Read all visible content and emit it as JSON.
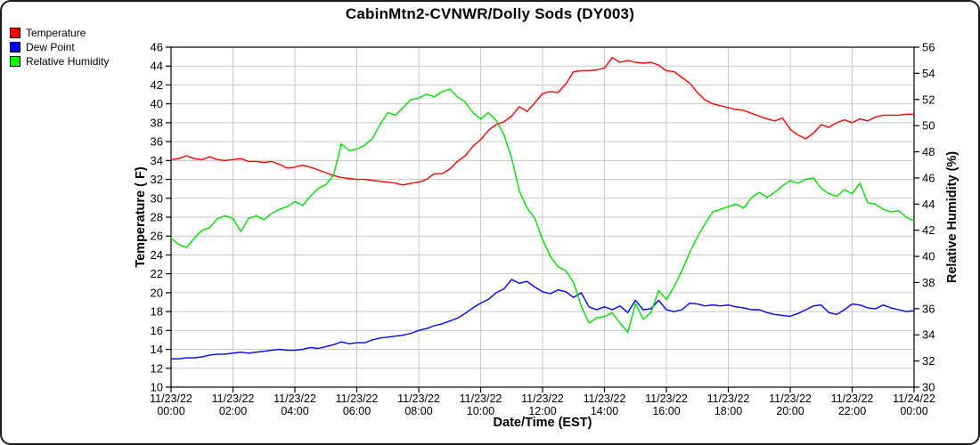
{
  "title": "CabinMtn2-CVNWR/Dolly Sods (DY003)",
  "legend": {
    "items": [
      {
        "label": "Temperature",
        "color": "#ff0000"
      },
      {
        "label": "Dew Point",
        "color": "#0000ff"
      },
      {
        "label": "Relative Humidity",
        "color": "#00ff00"
      }
    ]
  },
  "axes": {
    "left_title": "Temperature ( F)",
    "right_title": "Relative Humidity (%)",
    "x_title": "Date/Time (EST)"
  },
  "chart_data": {
    "type": "line",
    "title": "CabinMtn2-CVNWR/Dolly Sods (DY003)",
    "xlabel": "Date/Time (EST)",
    "ylabel_left": "Temperature ( F)",
    "ylabel_right": "Relative Humidity (%)",
    "grid": true,
    "legend_position": "top-left",
    "grid_color": "#c9c9c9",
    "ylim_left": [
      10,
      46
    ],
    "ytick_step_left": 2,
    "ylim_right": [
      30,
      56
    ],
    "ytick_step_right": 2,
    "xlim_hours": [
      0,
      24
    ],
    "xtick_step_hours": 2,
    "x_ticks": [
      {
        "date": "11/23/22",
        "time": "00:00"
      },
      {
        "date": "11/23/22",
        "time": "02:00"
      },
      {
        "date": "11/23/22",
        "time": "04:00"
      },
      {
        "date": "11/23/22",
        "time": "06:00"
      },
      {
        "date": "11/23/22",
        "time": "08:00"
      },
      {
        "date": "11/23/22",
        "time": "10:00"
      },
      {
        "date": "11/23/22",
        "time": "12:00"
      },
      {
        "date": "11/23/22",
        "time": "14:00"
      },
      {
        "date": "11/23/22",
        "time": "16:00"
      },
      {
        "date": "11/23/22",
        "time": "18:00"
      },
      {
        "date": "11/23/22",
        "time": "20:00"
      },
      {
        "date": "11/23/22",
        "time": "22:00"
      },
      {
        "date": "11/24/22",
        "time": "00:00"
      }
    ],
    "x_start_hour": 0,
    "x_step_hours": 0.25,
    "series": [
      {
        "name": "Temperature",
        "axis": "left",
        "unit": "F",
        "color": "#ff0000",
        "values": [
          34.1,
          34.2,
          34.5,
          34.2,
          34.1,
          34.4,
          34.1,
          34.0,
          34.1,
          34.2,
          33.9,
          33.9,
          33.8,
          33.9,
          33.6,
          33.2,
          33.3,
          33.5,
          33.3,
          33.0,
          32.7,
          32.4,
          32.2,
          32.1,
          32.0,
          32.0,
          31.9,
          31.8,
          31.7,
          31.6,
          31.4,
          31.6,
          31.7,
          32.0,
          32.6,
          32.6,
          33.1,
          33.9,
          34.5,
          35.5,
          36.2,
          37.2,
          37.8,
          38.1,
          38.7,
          39.7,
          39.2,
          40.1,
          41.1,
          41.3,
          41.2,
          42.1,
          43.4,
          43.5,
          43.5,
          43.6,
          43.8,
          44.9,
          44.4,
          44.6,
          44.4,
          44.3,
          44.4,
          44.1,
          43.5,
          43.4,
          42.8,
          42.2,
          41.2,
          40.4,
          40.0,
          39.8,
          39.6,
          39.4,
          39.3,
          39.0,
          38.7,
          38.4,
          38.2,
          38.5,
          37.3,
          36.7,
          36.3,
          36.9,
          37.8,
          37.5,
          38.0,
          38.3,
          38.0,
          38.4,
          38.2,
          38.6,
          38.8,
          38.8,
          38.8,
          38.9,
          38.9
        ]
      },
      {
        "name": "Dew Point",
        "axis": "left",
        "unit": "F",
        "color": "#0000ff",
        "values": [
          13.0,
          13.0,
          13.1,
          13.1,
          13.2,
          13.4,
          13.5,
          13.5,
          13.6,
          13.7,
          13.6,
          13.7,
          13.8,
          13.9,
          14.0,
          13.9,
          13.9,
          14.0,
          14.2,
          14.1,
          14.3,
          14.5,
          14.8,
          14.6,
          14.7,
          14.7,
          15.0,
          15.2,
          15.3,
          15.4,
          15.5,
          15.7,
          16.0,
          16.2,
          16.5,
          16.7,
          17.0,
          17.3,
          17.8,
          18.4,
          18.9,
          19.3,
          20.0,
          20.4,
          21.4,
          21.0,
          21.2,
          20.6,
          20.1,
          19.9,
          20.3,
          20.1,
          19.5,
          20.0,
          18.5,
          18.2,
          18.5,
          18.2,
          18.6,
          17.9,
          19.2,
          18.2,
          18.3,
          19.2,
          18.2,
          18.0,
          18.2,
          18.9,
          18.8,
          18.6,
          18.7,
          18.6,
          18.7,
          18.5,
          18.4,
          18.2,
          18.2,
          17.9,
          17.7,
          17.6,
          17.5,
          17.8,
          18.2,
          18.6,
          18.7,
          17.9,
          17.7,
          18.2,
          18.8,
          18.7,
          18.4,
          18.3,
          18.7,
          18.4,
          18.2,
          18.0,
          18.1
        ]
      },
      {
        "name": "Relative Humidity",
        "axis": "right",
        "unit": "%",
        "color": "#00dd00",
        "values": [
          41.4,
          40.9,
          40.7,
          41.4,
          42.0,
          42.2,
          42.9,
          43.1,
          42.9,
          41.9,
          42.9,
          43.1,
          42.8,
          43.3,
          43.6,
          43.8,
          44.2,
          43.9,
          44.6,
          45.2,
          45.5,
          46.2,
          48.6,
          48.1,
          48.2,
          48.5,
          49.0,
          50.1,
          51.0,
          50.8,
          51.4,
          52.0,
          52.1,
          52.4,
          52.2,
          52.6,
          52.8,
          52.2,
          51.8,
          51.0,
          50.5,
          51.0,
          50.4,
          49.3,
          47.5,
          45.0,
          43.7,
          42.9,
          41.3,
          40.0,
          39.2,
          38.9,
          38.0,
          36.2,
          34.9,
          35.3,
          35.4,
          35.7,
          34.9,
          34.2,
          36.4,
          35.2,
          35.7,
          37.4,
          36.7,
          37.7,
          38.9,
          40.3,
          41.5,
          42.5,
          43.4,
          43.6,
          43.8,
          44.0,
          43.7,
          44.5,
          44.9,
          44.5,
          44.9,
          45.4,
          45.8,
          45.6,
          45.9,
          46.0,
          45.2,
          44.8,
          44.6,
          45.1,
          44.8,
          45.6,
          44.1,
          44.0,
          43.6,
          43.4,
          43.5,
          43.0,
          42.7
        ]
      }
    ]
  }
}
